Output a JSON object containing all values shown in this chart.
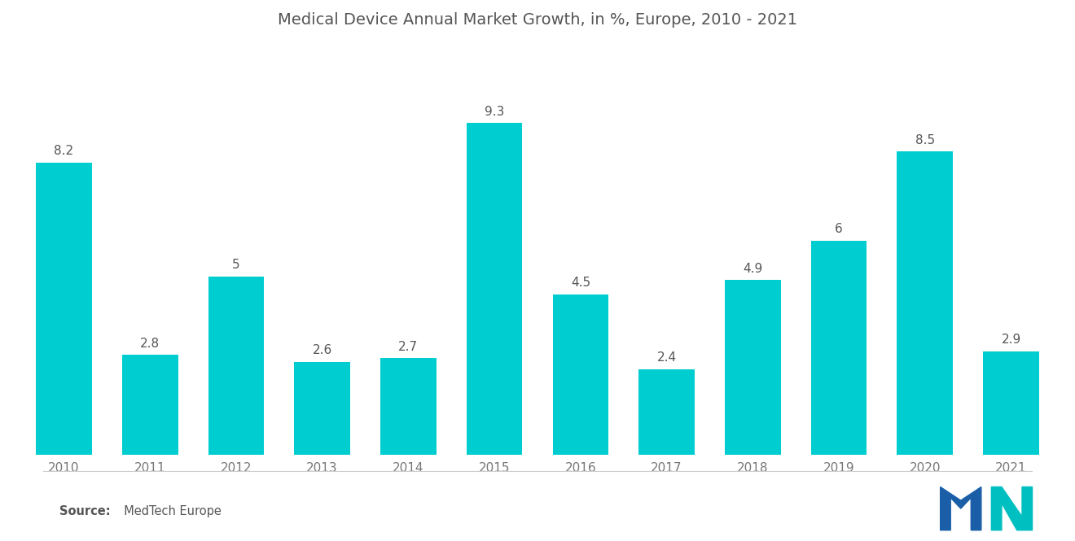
{
  "title": "Medical Device Annual Market Growth, in %, Europe, 2010 - 2021",
  "years": [
    2010,
    2011,
    2012,
    2013,
    2014,
    2015,
    2016,
    2017,
    2018,
    2019,
    2020,
    2021
  ],
  "values": [
    8.2,
    2.8,
    5.0,
    2.6,
    2.7,
    9.3,
    4.5,
    2.4,
    4.9,
    6.0,
    8.5,
    2.9
  ],
  "bar_color": "#00CDD0",
  "background_color": "#ffffff",
  "title_fontsize": 14,
  "label_fontsize": 11,
  "tick_fontsize": 11,
  "source_bold": "Source:",
  "source_normal": "  MedTech Europe",
  "ylim": [
    0,
    11.5
  ],
  "value_label_color": "#555555",
  "axis_label_color": "#777777",
  "bar_width": 0.65,
  "logo_m_color": "#1B5EA8",
  "logo_n_color": "#00BFC0",
  "logo_stripe_color": "#4BAEC9"
}
